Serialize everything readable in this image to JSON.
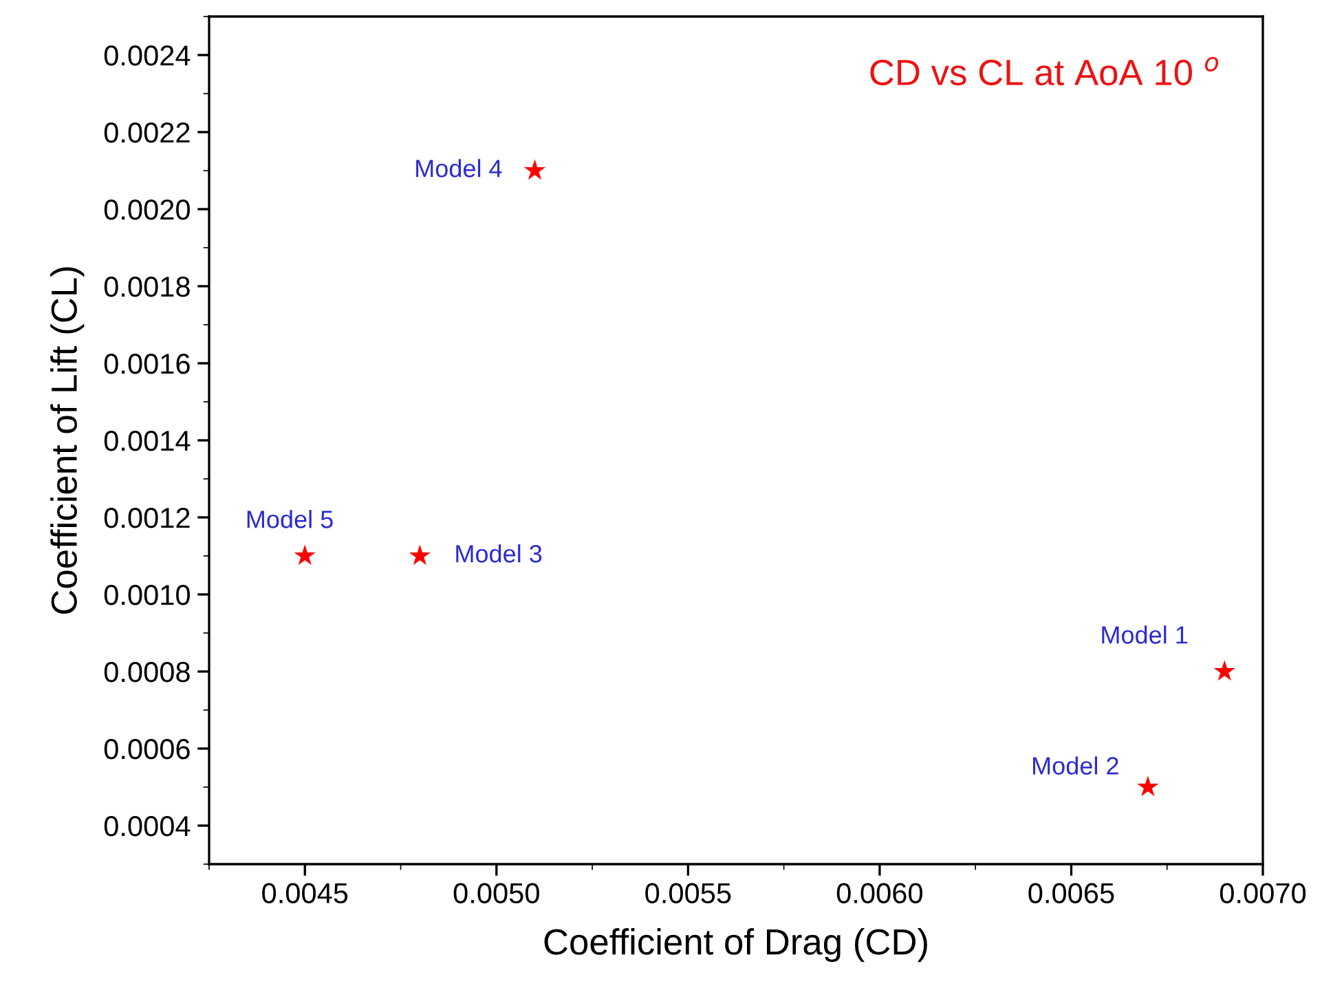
{
  "chart_data": {
    "type": "scatter",
    "xlabel": "Coefficient of Drag (CD)",
    "ylabel": "Coefficient of Lift (CL)",
    "x": [
      0.0069,
      0.0067,
      0.0048,
      0.0051,
      0.0045
    ],
    "values": [
      0.0008,
      0.0005,
      0.0011,
      0.0021,
      0.0011
    ],
    "color": "#ff0000",
    "marker": "star",
    "xlim": [
      0.00425,
      0.007
    ],
    "xticks": [
      0.0045,
      {
        "value": 0.005,
        "label": "0.0050"
      },
      0.0055,
      {
        "value": 0.006,
        "label": "0.0060"
      },
      0.0065,
      {
        "value": 0.007,
        "label": "0.0070"
      }
    ],
    "ylim": [
      0.0003,
      0.0025
    ],
    "yticks": [
      0.0004,
      0.0006,
      0.0008,
      {
        "value": 0.001,
        "label": "0.0010"
      },
      0.0012,
      0.0014,
      0.0016,
      0.0018,
      {
        "value": 0.002,
        "label": "0.0020"
      },
      0.0022,
      0.0024
    ],
    "annotations": [
      "CD vs CL at AoA 10 $^{o}$",
      {
        "text": "Model 1",
        "x": 0.0069,
        "y": 0.0008
      },
      {
        "text": "Model 2",
        "x": 0.0067,
        "y": 0.0005
      },
      {
        "text": "Model 3",
        "x": 0.0048,
        "y": 0.0011
      },
      {
        "text": "Model 4",
        "x": 0.0051,
        "y": 0.0021
      },
      {
        "text": "Model 5",
        "x": 0.0045,
        "y": 0.0011
      }
    ],
    "grid": false
  }
}
